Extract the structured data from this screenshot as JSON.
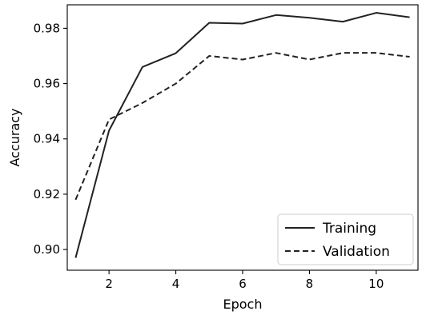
{
  "chart_data": {
    "type": "line",
    "title": "",
    "xlabel": "Epoch",
    "ylabel": "Accuracy",
    "xlim": [
      0.75,
      11.25
    ],
    "ylim": [
      0.8925,
      0.9885
    ],
    "x_ticks": [
      2,
      4,
      6,
      8,
      10
    ],
    "y_ticks": [
      0.9,
      0.92,
      0.94,
      0.96,
      0.98
    ],
    "x_tick_labels": [
      "2",
      "4",
      "6",
      "8",
      "10"
    ],
    "y_tick_labels": [
      "0.90",
      "0.92",
      "0.94",
      "0.96",
      "0.98"
    ],
    "x": [
      1,
      2,
      3,
      4,
      5,
      6,
      7,
      8,
      9,
      10,
      11
    ],
    "series": [
      {
        "name": "Training",
        "line_style": "solid",
        "color": "#222222",
        "values": [
          0.897,
          0.943,
          0.966,
          0.971,
          0.982,
          0.9817,
          0.9848,
          0.9838,
          0.9824,
          0.9856,
          0.984
        ]
      },
      {
        "name": "Validation",
        "line_style": "dashed",
        "color": "#222222",
        "values": [
          0.918,
          0.947,
          0.953,
          0.96,
          0.97,
          0.9687,
          0.9711,
          0.9687,
          0.9711,
          0.9711,
          0.9697
        ]
      }
    ],
    "grid": false,
    "legend_position": "lower-right"
  }
}
